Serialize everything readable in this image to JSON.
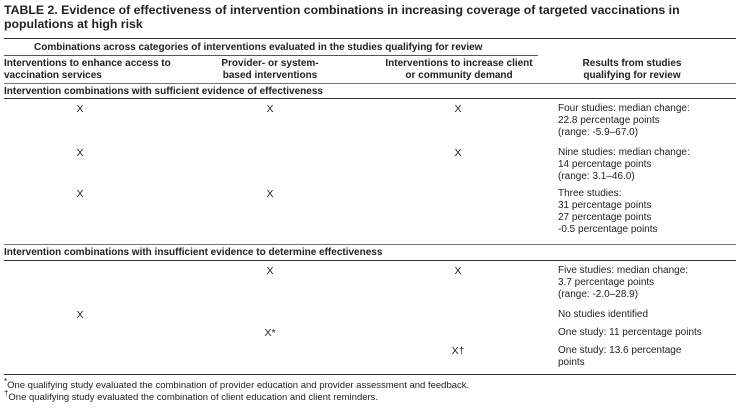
{
  "title": "TABLE 2. Evidence of effectiveness of intervention combinations in increasing coverage of targeted vaccinations in populations at high risk",
  "group_header": "Combinations across categories of interventions evaluated in the studies qualifying for review",
  "columns": [
    "Interventions to enhance access to vaccination services",
    "Provider- or system-based interventions",
    "Interventions to increase client or community demand",
    "Results from studies qualifying for review"
  ],
  "sections": [
    {
      "label": "Intervention combinations with sufficient evidence of effectiveness",
      "rows": [
        {
          "access": "X",
          "provider": "X",
          "demand": "X",
          "results": [
            "Four studies: median change:",
            "22.8 percentage points",
            "(range: -5.9–67.0)"
          ]
        },
        {
          "access": "X",
          "provider": "",
          "demand": "X",
          "results": [
            "Nine studies: median change:",
            "14 percentage points",
            "(range: 3.1–46.0)"
          ]
        },
        {
          "access": "X",
          "provider": "X",
          "demand": "",
          "results": [
            "Three studies:",
            "31 percentage points",
            "27 percentage points",
            "-0.5 percentage points"
          ]
        }
      ]
    },
    {
      "label": "Intervention combinations with insufficient evidence to determine effectiveness",
      "rows": [
        {
          "access": "",
          "provider": "X",
          "demand": "X",
          "results": [
            "Five studies: median change:",
            "3.7 percentage points",
            "(range: -2.0–28.9)"
          ]
        },
        {
          "access": "X",
          "provider": "",
          "demand": "",
          "results": [
            "No studies identified"
          ]
        },
        {
          "access": "",
          "provider": "X*",
          "demand": "",
          "results": [
            "One study: 11 percentage points"
          ]
        },
        {
          "access": "",
          "provider": "",
          "demand": "X†",
          "results": [
            "One study: 13.6 percentage",
            "points"
          ]
        }
      ]
    }
  ],
  "footnotes": [
    {
      "mark": "*",
      "text": "One qualifying study evaluated the combination of provider education and provider assessment and feedback."
    },
    {
      "mark": "†",
      "text": "One qualifying study evaluated the combination of client education and client reminders."
    }
  ]
}
